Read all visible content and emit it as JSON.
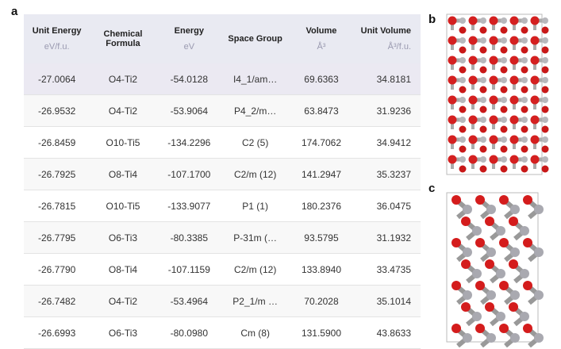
{
  "panels": {
    "a": "a",
    "b": "b",
    "c": "c"
  },
  "table": {
    "columns": [
      {
        "name": "Unit Energy",
        "unit": "eV/f.u."
      },
      {
        "name": "Chemical Formula"
      },
      {
        "name": "Energy",
        "unit": "eV"
      },
      {
        "name": "Space Group"
      },
      {
        "name": "Volume",
        "unit": "Å³"
      },
      {
        "name": "Unit Volume",
        "unit": "Å³/f.u."
      }
    ],
    "rows": [
      [
        "-27.0064",
        "O4-Ti2",
        "-54.0128",
        "I4_1/am…",
        "69.6363",
        "34.8181"
      ],
      [
        "-26.9532",
        "O4-Ti2",
        "-53.9064",
        "P4_2/m…",
        "63.8473",
        "31.9236"
      ],
      [
        "-26.8459",
        "O10-Ti5",
        "-134.2296",
        "C2 (5)",
        "174.7062",
        "34.9412"
      ],
      [
        "-26.7925",
        "O8-Ti4",
        "-107.1700",
        "C2/m (12)",
        "141.2947",
        "35.3237"
      ],
      [
        "-26.7815",
        "O10-Ti5",
        "-133.9077",
        "P1 (1)",
        "180.2376",
        "36.0475"
      ],
      [
        "-26.7795",
        "O6-Ti3",
        "-80.3385",
        "P-31m (…",
        "93.5795",
        "31.1932"
      ],
      [
        "-26.7790",
        "O8-Ti4",
        "-107.1159",
        "C2/m (12)",
        "133.8940",
        "33.4735"
      ],
      [
        "-26.7482",
        "O4-Ti2",
        "-53.4964",
        "P2_1/m …",
        "70.2028",
        "35.1014"
      ],
      [
        "-26.6993",
        "O6-Ti3",
        "-80.0980",
        "Cm (8)",
        "131.5900",
        "43.8633"
      ]
    ]
  }
}
